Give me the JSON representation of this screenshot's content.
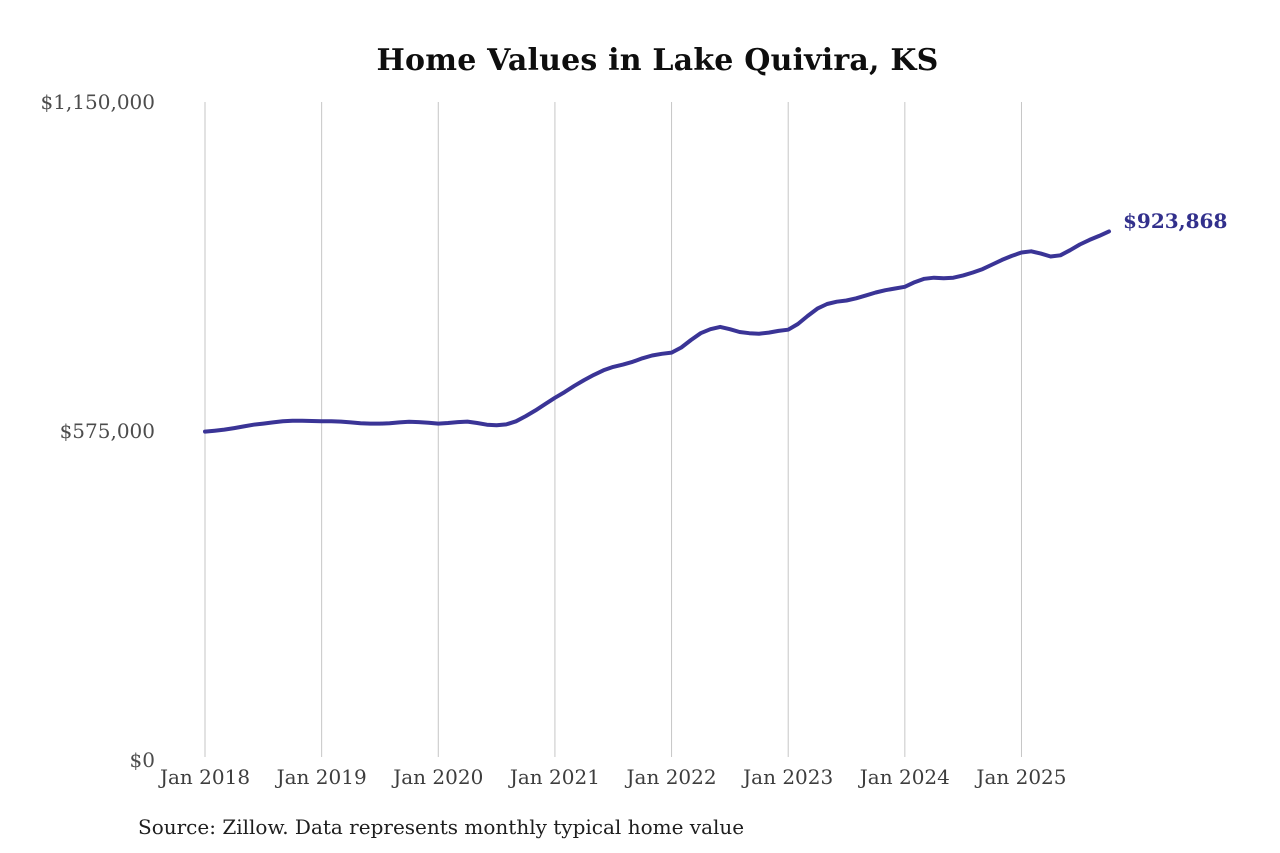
{
  "title": "Home Values in Lake Quivira, KS",
  "source_note": "Source: Zillow. Data represents monthly typical home value",
  "colors": {
    "background": "#ffffff",
    "line": "#3a3496",
    "end_label": "#32308c",
    "gridline": "#c6c6c6",
    "title_text": "#0e0e0e",
    "axis_text": "#4c4c4c"
  },
  "chart_data": {
    "type": "line",
    "title": "Home Values in Lake Quivira, KS",
    "xlabel": "",
    "ylabel": "",
    "unit": "USD",
    "x_start": "2018-01",
    "x_interval": "month",
    "x_tick_labels": [
      "Jan 2018",
      "Jan 2019",
      "Jan 2020",
      "Jan 2021",
      "Jan 2022",
      "Jan 2023",
      "Jan 2024",
      "Jan 2025"
    ],
    "y_ticks": [
      1150000,
      575000,
      0
    ],
    "y_tick_labels": [
      "$1,150,000",
      "$575,000",
      "$0"
    ],
    "ylim": [
      0,
      1150000
    ],
    "grid": "vertical-only",
    "legend": "none",
    "end_label": "$923,868",
    "final_value": 923868,
    "line_color": "#3a3496",
    "gridline_color": "#c6c6c6",
    "series": [
      {
        "name": "Monthly typical home value",
        "values": [
          574000,
          575500,
          577500,
          580000,
          583000,
          586000,
          588000,
          590000,
          592000,
          593000,
          593000,
          592500,
          592000,
          592000,
          591500,
          590000,
          588500,
          588000,
          588000,
          588500,
          590000,
          591000,
          590500,
          589500,
          588000,
          589000,
          590500,
          591500,
          589000,
          586000,
          585000,
          586500,
          592000,
          601000,
          611000,
          622000,
          633000,
          643000,
          654000,
          664000,
          673000,
          681000,
          687000,
          691000,
          696000,
          702000,
          707000,
          710000,
          712000,
          721000,
          734000,
          746000,
          753000,
          757000,
          753000,
          748000,
          746000,
          745000,
          747000,
          750000,
          752000,
          762000,
          776000,
          789000,
          797000,
          801000,
          803000,
          807000,
          812000,
          817000,
          821000,
          824000,
          827000,
          835000,
          841000,
          843000,
          842000,
          843000,
          847000,
          852000,
          858000,
          866000,
          874000,
          881000,
          887000,
          889000,
          885000,
          880000,
          882000,
          891000,
          901000,
          909000,
          916000,
          923868
        ]
      }
    ]
  }
}
